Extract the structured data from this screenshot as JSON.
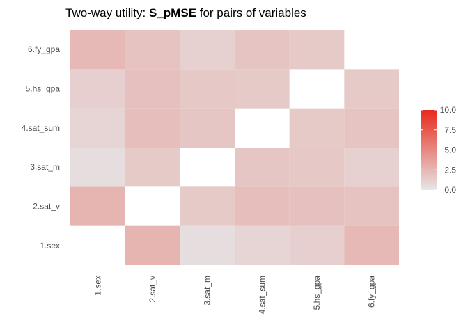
{
  "chart_data": {
    "type": "heatmap",
    "title": {
      "prefix": "Two-way utility: ",
      "bold": "S_pMSE",
      "suffix": " for pairs of variables"
    },
    "xlabel": "",
    "ylabel": "",
    "x_categories": [
      "1.sex",
      "2.sat_v",
      "3.sat_m",
      "4.sat_sum",
      "5.hs_gpa",
      "6.fy_gpa"
    ],
    "y_categories": [
      "1.sex",
      "2.sat_v",
      "3.sat_m",
      "4.sat_sum",
      "5.hs_gpa",
      "6.fy_gpa"
    ],
    "cells": [
      {
        "x": "2.sat_v",
        "y": "1.sex",
        "value": 2.6
      },
      {
        "x": "3.sat_m",
        "y": "1.sex",
        "value": 0.4
      },
      {
        "x": "4.sat_sum",
        "y": "1.sex",
        "value": 0.9
      },
      {
        "x": "5.hs_gpa",
        "y": "1.sex",
        "value": 1.2
      },
      {
        "x": "6.fy_gpa",
        "y": "1.sex",
        "value": 2.4
      },
      {
        "x": "1.sex",
        "y": "2.sat_v",
        "value": 2.6
      },
      {
        "x": "3.sat_m",
        "y": "2.sat_v",
        "value": 1.5
      },
      {
        "x": "4.sat_sum",
        "y": "2.sat_v",
        "value": 2.1
      },
      {
        "x": "5.hs_gpa",
        "y": "2.sat_v",
        "value": 2.0
      },
      {
        "x": "6.fy_gpa",
        "y": "2.sat_v",
        "value": 1.9
      },
      {
        "x": "1.sex",
        "y": "3.sat_m",
        "value": 0.4
      },
      {
        "x": "2.sat_v",
        "y": "3.sat_m",
        "value": 1.5
      },
      {
        "x": "4.sat_sum",
        "y": "3.sat_m",
        "value": 1.7
      },
      {
        "x": "5.hs_gpa",
        "y": "3.sat_m",
        "value": 1.6
      },
      {
        "x": "6.fy_gpa",
        "y": "3.sat_m",
        "value": 1.1
      },
      {
        "x": "1.sex",
        "y": "4.sat_sum",
        "value": 0.9
      },
      {
        "x": "2.sat_v",
        "y": "4.sat_sum",
        "value": 2.1
      },
      {
        "x": "3.sat_m",
        "y": "4.sat_sum",
        "value": 1.7
      },
      {
        "x": "5.hs_gpa",
        "y": "4.sat_sum",
        "value": 1.5
      },
      {
        "x": "6.fy_gpa",
        "y": "4.sat_sum",
        "value": 1.8
      },
      {
        "x": "1.sex",
        "y": "5.hs_gpa",
        "value": 1.2
      },
      {
        "x": "2.sat_v",
        "y": "5.hs_gpa",
        "value": 2.0
      },
      {
        "x": "3.sat_m",
        "y": "5.hs_gpa",
        "value": 1.6
      },
      {
        "x": "4.sat_sum",
        "y": "5.hs_gpa",
        "value": 1.5
      },
      {
        "x": "6.fy_gpa",
        "y": "5.hs_gpa",
        "value": 1.5
      },
      {
        "x": "1.sex",
        "y": "6.fy_gpa",
        "value": 2.4
      },
      {
        "x": "2.sat_v",
        "y": "6.fy_gpa",
        "value": 1.9
      },
      {
        "x": "3.sat_m",
        "y": "6.fy_gpa",
        "value": 1.1
      },
      {
        "x": "4.sat_sum",
        "y": "6.fy_gpa",
        "value": 1.8
      },
      {
        "x": "5.hs_gpa",
        "y": "6.fy_gpa",
        "value": 1.5
      }
    ],
    "color_scale": {
      "low": "#e6e6e6",
      "high": "#e8291c",
      "limits": [
        0,
        10
      ],
      "breaks": [
        "0.0",
        "2.5",
        "5.0",
        "7.5",
        "10.0"
      ]
    },
    "legend_position": "right",
    "grid": false
  }
}
